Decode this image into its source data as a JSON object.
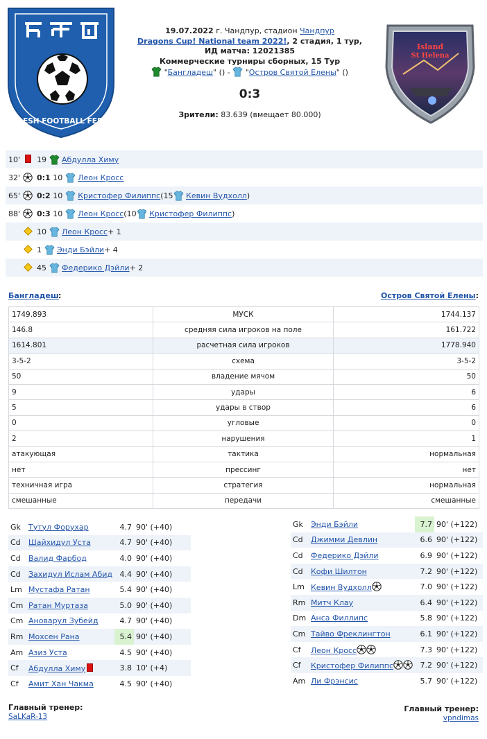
{
  "header": {
    "date": "19.07.2022",
    "city_text": "г. Чандпур, стадион",
    "stadium": "Чандпур",
    "tournament": "Dragons Cup! National team 2022!",
    "stage_text": ", 2 стадия, 1 тур,",
    "match_id": "ИД матча: 12021385",
    "type_line": "Коммерческие турниры сборных, 15 Тур",
    "home_team": "Бангладеш",
    "away_team": "Остров Святой Елены",
    "score": "0:3",
    "viewers_label": "Зрители:",
    "viewers_value": "83.639 (вмещает 80.000)"
  },
  "logos": {
    "left_text": "BANGLADESH FOOTBALL FEDERATION",
    "right_text_1": "Island",
    "right_text_2": "St Helena"
  },
  "events": [
    {
      "minute": "10'",
      "icon": "redcard",
      "score": "",
      "num": "19",
      "shirt": "green",
      "player": "Абдулла Химу",
      "extra_pre": "",
      "assist_num": "",
      "assist": "",
      "extra_post": ""
    },
    {
      "minute": "32'",
      "icon": "ball",
      "score": "0:1",
      "num": "10",
      "shirt": "blue",
      "player": "Леон Кросс",
      "extra_pre": "",
      "assist_num": "",
      "assist": "",
      "extra_post": ""
    },
    {
      "minute": "65'",
      "icon": "ball",
      "score": "0:2",
      "num": "10",
      "shirt": "blue",
      "player": "Кристофер Филиппс",
      "extra_pre": " (15 ",
      "assist_num": "",
      "assist": "Кевин Вудхолл",
      "extra_post": ")"
    },
    {
      "minute": "88'",
      "icon": "ball",
      "score": "0:3",
      "num": "10",
      "shirt": "blue",
      "player": "Леон Кросс",
      "extra_pre": " (10 ",
      "assist_num": "",
      "assist": "Кристофер Филиппс",
      "extra_post": ")"
    },
    {
      "minute": "",
      "icon": "diamond",
      "score": "",
      "num": "10",
      "shirt": "blue",
      "player": "Леон Кросс",
      "extra_pre": "",
      "assist_num": "",
      "assist": "",
      "extra_post": " + 1"
    },
    {
      "minute": "",
      "icon": "diamond",
      "score": "",
      "num": "1",
      "shirt": "blue",
      "player": "Энди Бэйли",
      "extra_pre": "",
      "assist_num": "",
      "assist": "",
      "extra_post": " + 4"
    },
    {
      "minute": "",
      "icon": "diamond",
      "score": "",
      "num": "45",
      "shirt": "blue",
      "player": "Федерико Дэйли",
      "extra_pre": "",
      "assist_num": "",
      "assist": "",
      "extra_post": " + 2"
    }
  ],
  "stats": {
    "home_label": "Бангладеш",
    "away_label": "Остров Святой Елены",
    "rows": [
      {
        "home": "1749.893",
        "label": "МУСК",
        "away": "1744.137"
      },
      {
        "home": "146.8",
        "label": "средняя сила игроков на поле",
        "away": "161.722"
      },
      {
        "home": "1614.801",
        "label": "расчетная сила игроков",
        "away": "1778.940"
      },
      {
        "home": "3-5-2",
        "label": "схема",
        "away": "3-5-2"
      },
      {
        "home": "50",
        "label": "владение мячом",
        "away": "50"
      },
      {
        "home": "9",
        "label": "удары",
        "away": "6"
      },
      {
        "home": "5",
        "label": "удары в створ",
        "away": "6"
      },
      {
        "home": "0",
        "label": "угловые",
        "away": "0"
      },
      {
        "home": "2",
        "label": "нарушения",
        "away": "1"
      },
      {
        "home": "атакующая",
        "label": "тактика",
        "away": "нормальная"
      },
      {
        "home": "нет",
        "label": "прессинг",
        "away": "нет"
      },
      {
        "home": "техничная игра",
        "label": "стратегия",
        "away": "нормальная"
      },
      {
        "home": "смешанные",
        "label": "передачи",
        "away": "смешанные"
      }
    ]
  },
  "home_lineup": [
    {
      "pos": "Gk",
      "name": "Тутул Форухар",
      "rating": "4.7",
      "minutes": "90' (+40)",
      "hi": false,
      "balls": 0,
      "card": false
    },
    {
      "pos": "Cd",
      "name": "Шайхидул Уста",
      "rating": "4.7",
      "minutes": "90' (+40)",
      "hi": false,
      "balls": 0,
      "card": false
    },
    {
      "pos": "Cd",
      "name": "Валид Фарбод",
      "rating": "4.0",
      "minutes": "90' (+40)",
      "hi": false,
      "balls": 0,
      "card": false
    },
    {
      "pos": "Cd",
      "name": "Захидул Ислам Абид",
      "rating": "4.4",
      "minutes": "90' (+40)",
      "hi": false,
      "balls": 0,
      "card": false
    },
    {
      "pos": "Lm",
      "name": "Мустафа Ратан",
      "rating": "5.4",
      "minutes": "90' (+40)",
      "hi": false,
      "balls": 0,
      "card": false
    },
    {
      "pos": "Cm",
      "name": "Ратан Муртаза",
      "rating": "5.0",
      "minutes": "90' (+40)",
      "hi": false,
      "balls": 0,
      "card": false
    },
    {
      "pos": "Cm",
      "name": "Ановарул Зубейд",
      "rating": "4.7",
      "minutes": "90' (+40)",
      "hi": false,
      "balls": 0,
      "card": false
    },
    {
      "pos": "Rm",
      "name": "Мохсен Рана",
      "rating": "5.4",
      "minutes": "90' (+40)",
      "hi": true,
      "balls": 0,
      "card": false
    },
    {
      "pos": "Am",
      "name": "Азиз Уста",
      "rating": "4.5",
      "minutes": "90' (+40)",
      "hi": false,
      "balls": 0,
      "card": false
    },
    {
      "pos": "Cf",
      "name": "Абдулла Химу",
      "rating": "3.8",
      "minutes": "10' (+4)",
      "hi": false,
      "balls": 0,
      "card": true
    },
    {
      "pos": "Cf",
      "name": "Амит Хан Чакма",
      "rating": "4.5",
      "minutes": "90' (+40)",
      "hi": false,
      "balls": 0,
      "card": false
    }
  ],
  "away_lineup": [
    {
      "pos": "Gk",
      "name": "Энди Бэйли",
      "rating": "7.7",
      "minutes": "90' (+122)",
      "hi": true,
      "balls": 0,
      "card": false
    },
    {
      "pos": "Cd",
      "name": "Джимми Девлин",
      "rating": "6.6",
      "minutes": "90' (+122)",
      "hi": false,
      "balls": 0,
      "card": false
    },
    {
      "pos": "Cd",
      "name": "Федерико Дэйли",
      "rating": "6.9",
      "minutes": "90' (+122)",
      "hi": false,
      "balls": 0,
      "card": false
    },
    {
      "pos": "Cd",
      "name": "Кофи Шилтон",
      "rating": "7.2",
      "minutes": "90' (+122)",
      "hi": false,
      "balls": 0,
      "card": false
    },
    {
      "pos": "Lm",
      "name": "Кевин Вудхолл",
      "rating": "7.0",
      "minutes": "90' (+122)",
      "hi": false,
      "balls": 1,
      "card": false
    },
    {
      "pos": "Rm",
      "name": "Митч Клау",
      "rating": "6.4",
      "minutes": "90' (+122)",
      "hi": false,
      "balls": 0,
      "card": false
    },
    {
      "pos": "Dm",
      "name": "Анса Филлипс",
      "rating": "5.8",
      "minutes": "90' (+122)",
      "hi": false,
      "balls": 0,
      "card": false
    },
    {
      "pos": "Cm",
      "name": "Тайво Фреклингтон",
      "rating": "6.1",
      "minutes": "90' (+122)",
      "hi": false,
      "balls": 0,
      "card": false
    },
    {
      "pos": "Cf",
      "name": "Леон Кросс",
      "rating": "7.3",
      "minutes": "90' (+122)",
      "hi": false,
      "balls": 2,
      "card": false
    },
    {
      "pos": "Cf",
      "name": "Кристофер Филиппс",
      "rating": "7.2",
      "minutes": "90' (+122)",
      "hi": false,
      "balls": 2,
      "card": false
    },
    {
      "pos": "Am",
      "name": "Ли Фрэнсис",
      "rating": "5.7",
      "minutes": "90' (+122)",
      "hi": false,
      "balls": 0,
      "card": false
    }
  ],
  "coaches": {
    "title": "Главный тренер:",
    "home": "SaLKaR-13",
    "away": "vpndimas"
  },
  "colors": {
    "link": "#2255aa",
    "row_alt": "#eef3f9",
    "highlight": "#d9f2d0",
    "home_shirt": "#1f8a2e",
    "away_shirt": "#67b6e0"
  }
}
